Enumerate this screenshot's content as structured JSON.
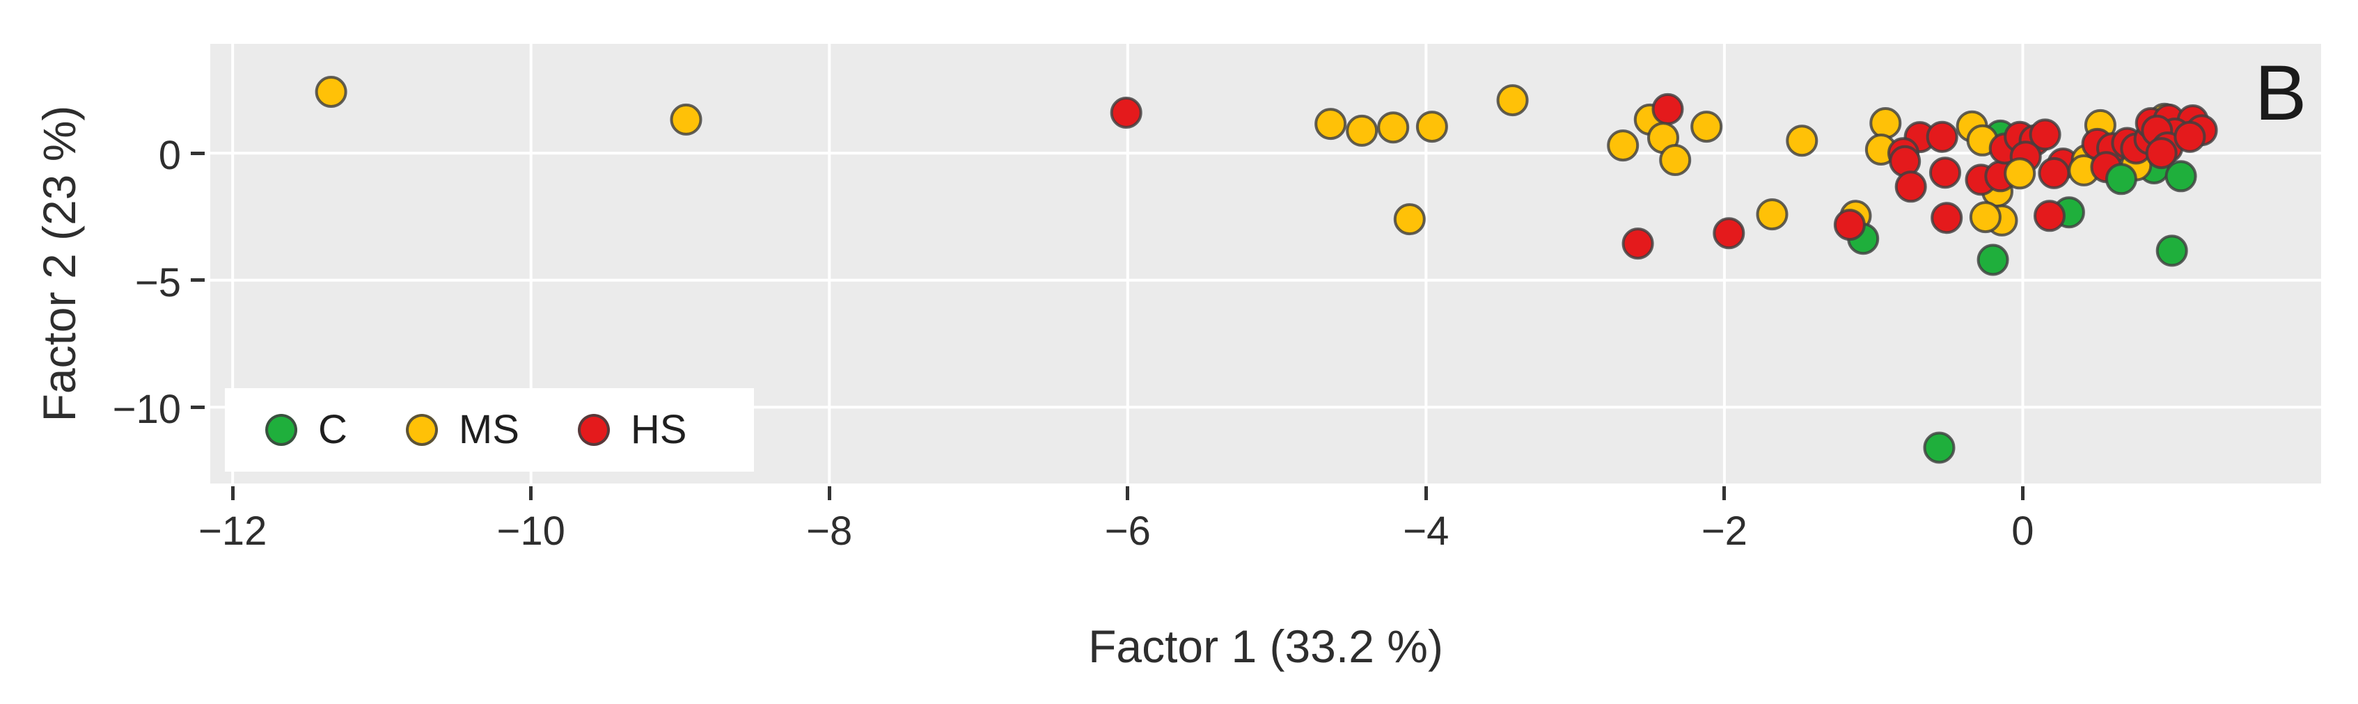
{
  "figure_label": "B",
  "style": {
    "panel_bg": "#EBEBEB",
    "gridline_color": "#FFFFFF",
    "marker_stroke": "#404040",
    "text_color": "#2e2e2e",
    "background": "#FFFFFF"
  },
  "legend": {
    "items": [
      {
        "label": "C",
        "color": "#1FAF3C"
      },
      {
        "label": "MS",
        "color": "#FFC107"
      },
      {
        "label": "HS",
        "color": "#E41A1C"
      }
    ]
  },
  "chart_data": {
    "type": "scatter",
    "title": "",
    "xlabel": "Factor 1 (33.2 %)",
    "ylabel": "Factor 2 (23 %)",
    "xlim": [
      -12.15,
      2.0
    ],
    "ylim": [
      -13.0,
      4.3
    ],
    "x_ticks": [
      -12,
      -10,
      -8,
      -6,
      -4,
      -2,
      0
    ],
    "y_ticks": [
      0,
      -5,
      -10
    ],
    "grid": true,
    "legend_position": "inside-bottom-left",
    "point_groups": [
      "C",
      "MS",
      "HS"
    ],
    "points": [
      [
        -1.12,
        -2.47,
        "MS"
      ],
      [
        -1.07,
        -3.37,
        "C"
      ],
      [
        -0.15,
        0.69,
        "C"
      ],
      [
        -0.17,
        -1.51,
        "MS"
      ],
      [
        0.95,
        1.35,
        "MS"
      ],
      [
        0.82,
        0.36,
        "MS"
      ],
      [
        0.88,
        -0.6,
        "C"
      ],
      [
        -0.14,
        -2.65,
        "MS"
      ],
      [
        0.31,
        -2.33,
        "C"
      ],
      [
        0.76,
        -0.48,
        "MS"
      ],
      [
        -11.34,
        2.41,
        "MS"
      ],
      [
        -8.96,
        1.32,
        "MS"
      ],
      [
        -6.01,
        1.59,
        "HS"
      ],
      [
        -4.64,
        1.15,
        "MS"
      ],
      [
        -4.43,
        0.88,
        "MS"
      ],
      [
        -4.22,
        1.01,
        "MS"
      ],
      [
        -3.96,
        1.04,
        "MS"
      ],
      [
        -3.42,
        2.08,
        "MS"
      ],
      [
        -4.11,
        -2.6,
        "MS"
      ],
      [
        -2.68,
        0.3,
        "MS"
      ],
      [
        -2.5,
        1.32,
        "MS"
      ],
      [
        -2.38,
        1.73,
        "HS"
      ],
      [
        -2.41,
        0.6,
        "MS"
      ],
      [
        -2.33,
        -0.27,
        "MS"
      ],
      [
        -2.12,
        1.04,
        "MS"
      ],
      [
        -1.48,
        0.49,
        "MS"
      ],
      [
        -1.68,
        -2.41,
        "MS"
      ],
      [
        -1.97,
        -3.15,
        "HS"
      ],
      [
        -2.58,
        -3.56,
        "HS"
      ],
      [
        -1.16,
        -2.82,
        "HS"
      ],
      [
        -0.92,
        1.18,
        "MS"
      ],
      [
        -0.95,
        0.14,
        "MS"
      ],
      [
        -0.69,
        0.63,
        "HS"
      ],
      [
        -0.54,
        0.64,
        "HS"
      ],
      [
        -0.8,
        0.0,
        "HS"
      ],
      [
        -0.79,
        -0.32,
        "HS"
      ],
      [
        -0.75,
        -1.32,
        "HS"
      ],
      [
        -0.52,
        -0.77,
        "HS"
      ],
      [
        -0.34,
        1.05,
        "MS"
      ],
      [
        -0.27,
        0.5,
        "MS"
      ],
      [
        -0.28,
        -1.05,
        "HS"
      ],
      [
        -0.15,
        -0.91,
        "HS"
      ],
      [
        -0.12,
        0.18,
        "HS"
      ],
      [
        -0.02,
        0.64,
        "HS"
      ],
      [
        0.08,
        0.5,
        "HS"
      ],
      [
        0.15,
        0.73,
        "HS"
      ],
      [
        0.02,
        -0.14,
        "HS"
      ],
      [
        -0.02,
        -0.8,
        "MS"
      ],
      [
        -0.51,
        -2.55,
        "HS"
      ],
      [
        -0.25,
        -2.52,
        "MS"
      ],
      [
        0.18,
        -2.47,
        "HS"
      ],
      [
        -0.2,
        -4.2,
        "C"
      ],
      [
        0.27,
        -0.41,
        "HS"
      ],
      [
        0.21,
        -0.79,
        "HS"
      ],
      [
        0.43,
        -0.27,
        "MS"
      ],
      [
        0.41,
        -0.68,
        "MS"
      ],
      [
        0.52,
        1.1,
        "MS"
      ],
      [
        0.5,
        0.36,
        "HS"
      ],
      [
        0.6,
        0.19,
        "HS"
      ],
      [
        0.56,
        -0.55,
        "HS"
      ],
      [
        0.66,
        -1.02,
        "C"
      ],
      [
        0.7,
        0.4,
        "HS"
      ],
      [
        0.76,
        0.18,
        "HS"
      ],
      [
        0.85,
        0.55,
        "HS"
      ],
      [
        0.86,
        1.18,
        "HS"
      ],
      [
        0.98,
        1.32,
        "HS"
      ],
      [
        1.14,
        1.29,
        "HS"
      ],
      [
        1.2,
        0.9,
        "HS"
      ],
      [
        1.02,
        0.77,
        "HS"
      ],
      [
        0.9,
        0.88,
        "HS"
      ],
      [
        0.97,
        0.22,
        "HS"
      ],
      [
        0.93,
        0.0,
        "HS"
      ],
      [
        1.12,
        0.64,
        "HS"
      ],
      [
        1.06,
        -0.91,
        "C"
      ],
      [
        1.0,
        -3.84,
        "C"
      ],
      [
        -0.56,
        -11.59,
        "C"
      ]
    ]
  }
}
